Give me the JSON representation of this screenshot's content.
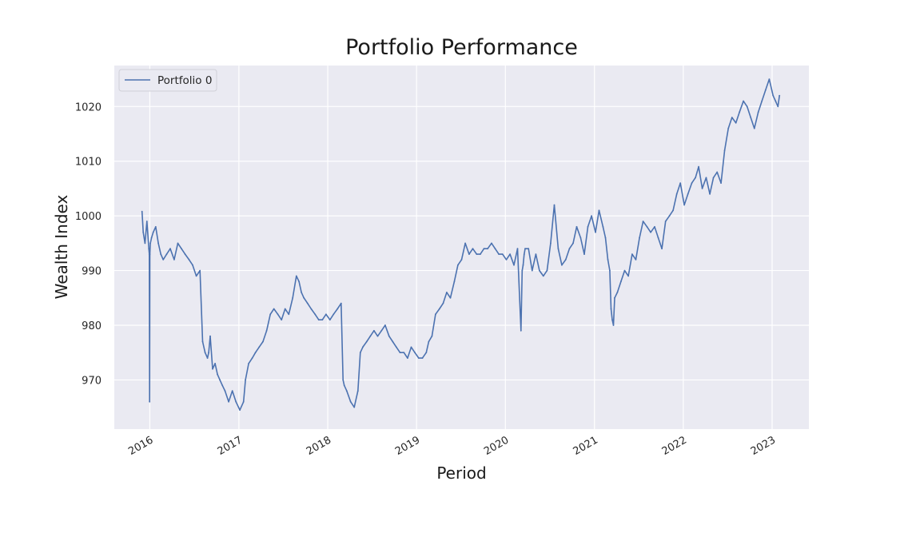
{
  "chart_data": {
    "type": "line",
    "title": "Portfolio Performance",
    "xlabel": "Period",
    "ylabel": "Wealth Index",
    "ylim": [
      961,
      1027.5
    ],
    "xlim": [
      "2015-08-08",
      "2023-06-01"
    ],
    "grid": true,
    "legend_position": "top-left",
    "x_tick_labels": [
      "2016",
      "2017",
      "2018",
      "2019",
      "2020",
      "2021",
      "2022",
      "2023"
    ],
    "y_tick_labels": [
      "970",
      "980",
      "990",
      "1000",
      "1010",
      "1020"
    ],
    "colors": {
      "series": "#4c72b0",
      "plot_background": "#eaeaf2",
      "grid": "#ffffff"
    },
    "series": [
      {
        "name": "Portfolio 0",
        "x": [
          "2015-11-30",
          "2015-12-05",
          "2015-12-12",
          "2015-12-20",
          "2015-12-28",
          "2015-12-30",
          "2015-12-31",
          "2016-01-01",
          "2016-01-03",
          "2016-01-08",
          "2016-01-15",
          "2016-01-25",
          "2016-02-05",
          "2016-02-15",
          "2016-02-25",
          "2016-03-10",
          "2016-03-25",
          "2016-04-10",
          "2016-04-25",
          "2016-05-10",
          "2016-05-25",
          "2016-06-10",
          "2016-06-25",
          "2016-07-10",
          "2016-07-25",
          "2016-08-05",
          "2016-08-15",
          "2016-08-25",
          "2016-08-30",
          "2016-09-05",
          "2016-09-15",
          "2016-09-25",
          "2016-10-05",
          "2016-10-15",
          "2016-10-25",
          "2016-11-05",
          "2016-11-20",
          "2016-12-05",
          "2016-12-20",
          "2017-01-05",
          "2017-01-20",
          "2017-01-28",
          "2017-02-10",
          "2017-02-25",
          "2017-03-10",
          "2017-03-25",
          "2017-04-10",
          "2017-04-25",
          "2017-05-10",
          "2017-05-25",
          "2017-06-10",
          "2017-06-25",
          "2017-07-10",
          "2017-07-25",
          "2017-08-10",
          "2017-08-25",
          "2017-09-05",
          "2017-09-15",
          "2017-09-25",
          "2017-10-10",
          "2017-10-25",
          "2017-11-10",
          "2017-11-25",
          "2017-12-10",
          "2017-12-25",
          "2018-01-10",
          "2018-01-25",
          "2018-02-10",
          "2018-02-25",
          "2018-03-05",
          "2018-03-10",
          "2018-03-20",
          "2018-04-05",
          "2018-04-20",
          "2018-05-05",
          "2018-05-15",
          "2018-05-25",
          "2018-06-10",
          "2018-06-25",
          "2018-07-10",
          "2018-07-25",
          "2018-08-10",
          "2018-08-25",
          "2018-09-10",
          "2018-09-25",
          "2018-10-10",
          "2018-10-25",
          "2018-11-10",
          "2018-11-25",
          "2018-12-10",
          "2018-12-25",
          "2019-01-10",
          "2019-01-25",
          "2019-02-10",
          "2019-02-20",
          "2019-03-05",
          "2019-03-20",
          "2019-04-05",
          "2019-04-20",
          "2019-05-05",
          "2019-05-20",
          "2019-06-05",
          "2019-06-20",
          "2019-07-05",
          "2019-07-20",
          "2019-08-05",
          "2019-08-20",
          "2019-09-05",
          "2019-09-20",
          "2019-10-05",
          "2019-10-20",
          "2019-11-05",
          "2019-11-20",
          "2019-12-05",
          "2019-12-20",
          "2020-01-05",
          "2020-01-20",
          "2020-02-05",
          "2020-02-20",
          "2020-03-05",
          "2020-03-10",
          "2020-03-14",
          "2020-03-18",
          "2020-03-22",
          "2020-04-05",
          "2020-04-20",
          "2020-05-05",
          "2020-05-20",
          "2020-06-05",
          "2020-06-20",
          "2020-07-05",
          "2020-07-20",
          "2020-08-05",
          "2020-08-20",
          "2020-09-05",
          "2020-09-20",
          "2020-10-05",
          "2020-10-20",
          "2020-11-05",
          "2020-11-20",
          "2020-12-05",
          "2020-12-20",
          "2021-01-05",
          "2021-01-20",
          "2021-02-05",
          "2021-02-15",
          "2021-02-25",
          "2021-03-05",
          "2021-03-10",
          "2021-03-15",
          "2021-03-20",
          "2021-03-25",
          "2021-04-05",
          "2021-04-20",
          "2021-05-05",
          "2021-05-20",
          "2021-06-05",
          "2021-06-20",
          "2021-07-05",
          "2021-07-20",
          "2021-08-05",
          "2021-08-20",
          "2021-09-05",
          "2021-09-20",
          "2021-10-05",
          "2021-10-20",
          "2021-11-05",
          "2021-11-20",
          "2021-12-05",
          "2021-12-20",
          "2022-01-05",
          "2022-01-20",
          "2022-02-05",
          "2022-02-20",
          "2022-03-05",
          "2022-03-20",
          "2022-04-05",
          "2022-04-20",
          "2022-05-05",
          "2022-05-20",
          "2022-06-05",
          "2022-06-20",
          "2022-07-05",
          "2022-07-20",
          "2022-08-05",
          "2022-08-20",
          "2022-09-05",
          "2022-09-20",
          "2022-10-05",
          "2022-10-20",
          "2022-11-05",
          "2022-11-20",
          "2022-12-05",
          "2022-12-20",
          "2023-01-05",
          "2023-01-15",
          "2023-01-25",
          "2023-01-31"
        ],
        "values": [
          1000.8,
          997,
          995,
          999,
          994,
          993,
          966,
          993,
          995,
          996,
          997,
          998,
          995,
          993,
          992,
          993,
          994,
          992,
          995,
          994,
          993,
          992,
          991,
          989,
          990,
          977,
          975,
          974,
          975,
          978,
          972,
          973,
          971,
          970,
          969,
          968,
          966,
          968,
          966,
          964.5,
          966,
          970,
          973,
          974,
          975,
          976,
          977,
          979,
          982,
          983,
          982,
          981,
          983,
          982,
          985,
          989,
          988,
          986,
          985,
          984,
          983,
          982,
          981,
          981,
          982,
          981,
          982,
          983,
          984,
          970,
          969,
          968,
          966,
          965,
          968,
          975,
          976,
          977,
          978,
          979,
          978,
          979,
          980,
          978,
          977,
          976,
          975,
          975,
          974,
          976,
          975,
          974,
          974,
          975,
          977,
          978,
          982,
          983,
          984,
          986,
          985,
          988,
          991,
          992,
          995,
          993,
          994,
          993,
          993,
          994,
          994,
          995,
          994,
          993,
          993,
          992,
          993,
          991,
          994,
          979,
          990,
          991,
          993,
          994,
          994,
          990,
          993,
          990,
          989,
          990,
          995,
          1002,
          994,
          991,
          992,
          994,
          995,
          998,
          996,
          993,
          998,
          1000,
          997,
          1001,
          998,
          996,
          992,
          990,
          983,
          981,
          980,
          985,
          986,
          988,
          990,
          989,
          993,
          992,
          996,
          999,
          998,
          997,
          998,
          996,
          994,
          999,
          1000,
          1001,
          1004,
          1006,
          1002,
          1004,
          1006,
          1007,
          1009,
          1005,
          1007,
          1004,
          1007,
          1008,
          1006,
          1012,
          1016,
          1018,
          1017,
          1019,
          1021,
          1020,
          1018,
          1016,
          1019,
          1021,
          1023,
          1025,
          1022,
          1021,
          1020,
          1022
        ]
      }
    ]
  }
}
